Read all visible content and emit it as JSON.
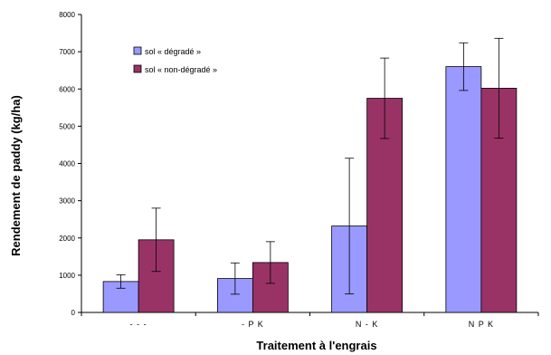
{
  "chart_data": {
    "type": "bar",
    "title": "",
    "xlabel": "Traitement à l'engrais",
    "ylabel": "Rendement de paddy (kg/ha)",
    "ylim": [
      0,
      8000
    ],
    "yticks": [
      "0",
      "1000",
      "2000",
      "3000",
      "4000",
      "5000",
      "6000",
      "7000",
      "8000"
    ],
    "categories": [
      "- - -",
      "- P K",
      "N - K",
      "N P K"
    ],
    "series": [
      {
        "name": "sol « dégradé »",
        "color": "#9999ff",
        "values": [
          830,
          910,
          2320,
          6600
        ],
        "error": [
          180,
          420,
          1820,
          640
        ]
      },
      {
        "name": "sol « non-dégradé »",
        "color": "#993366",
        "values": [
          1950,
          1340,
          5750,
          6020
        ],
        "error": [
          850,
          560,
          1080,
          1340
        ]
      }
    ],
    "grid": false,
    "legend_position": "top-left"
  }
}
